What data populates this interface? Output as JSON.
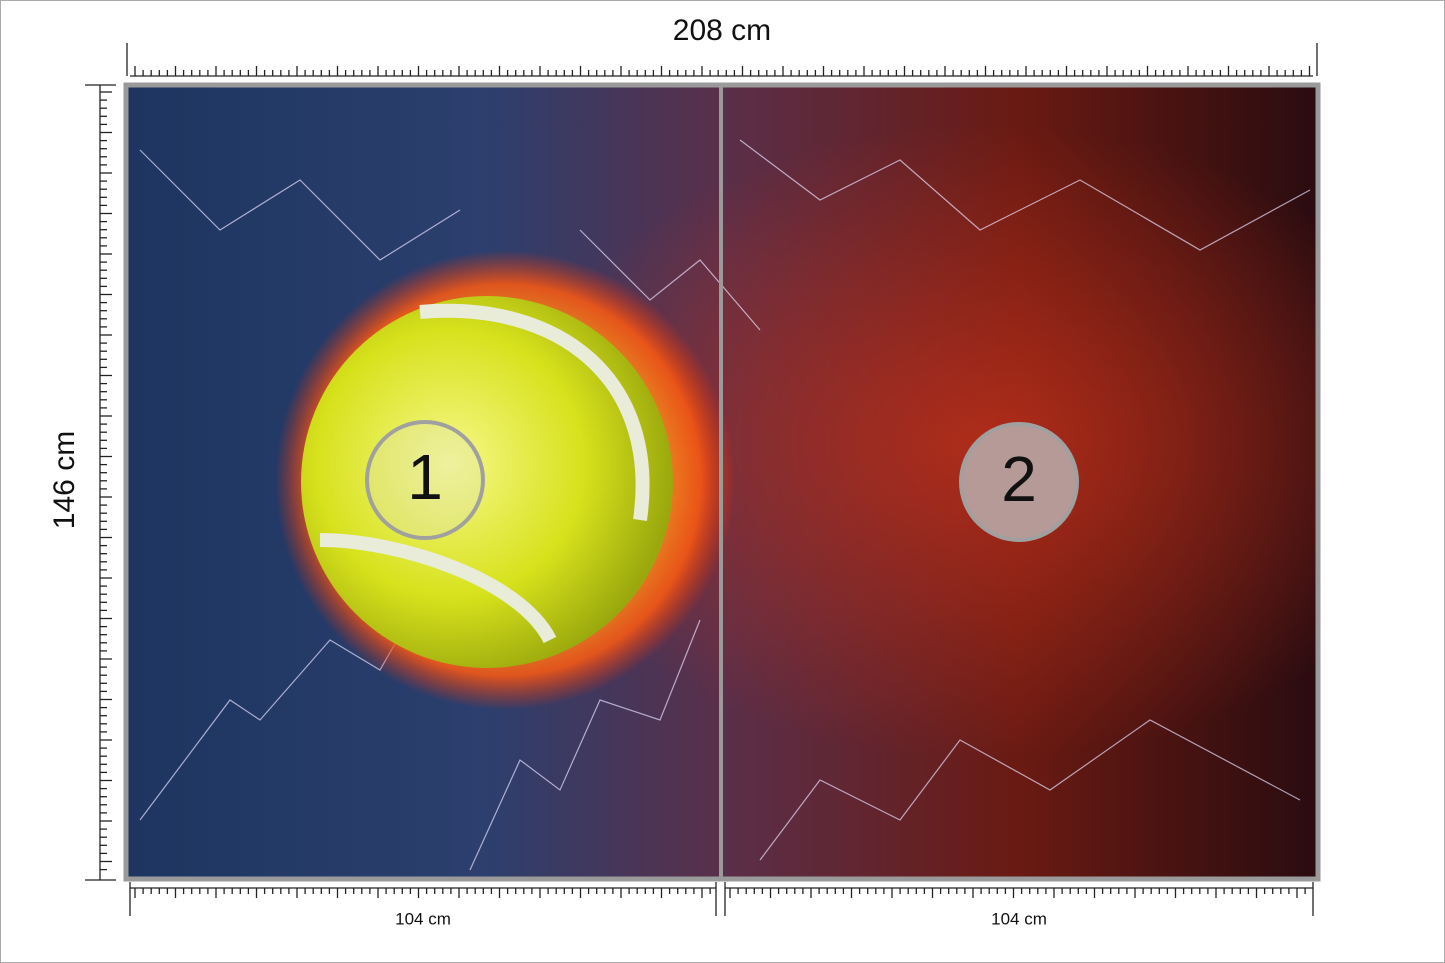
{
  "header": {
    "width_label": "208 cm"
  },
  "side": {
    "height_label": "146 cm"
  },
  "panels": [
    {
      "number": "1",
      "width_label": "104 cm"
    },
    {
      "number": "2",
      "width_label": "104 cm"
    }
  ]
}
